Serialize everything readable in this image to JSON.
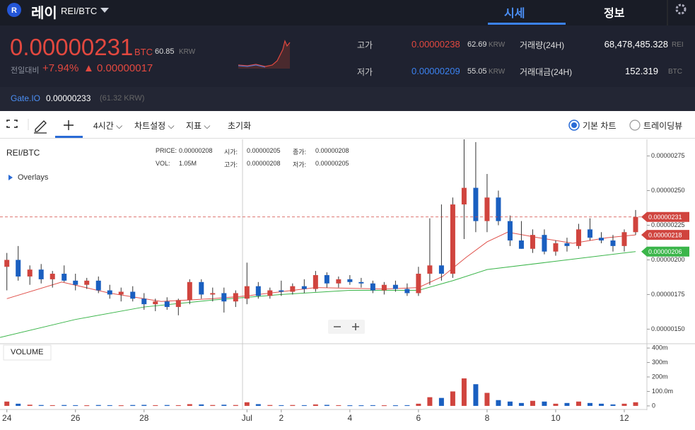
{
  "header": {
    "title": "레이",
    "pair": "REI/BTC",
    "tabs": [
      "시세",
      "정보"
    ]
  },
  "price": {
    "value": "0.00000231",
    "unit": "BTC",
    "krw": "60.85",
    "krw_unit": "KRW",
    "change_label": "전일대비",
    "change_pct": "+7.94%",
    "change": "▲ 0.00000017"
  },
  "stats": [
    {
      "label": "고가",
      "value": "0.00000238",
      "krw": "62.69",
      "unit": "KRW"
    },
    {
      "label": "저가",
      "value": "0.00000209",
      "krw": "55.05",
      "unit": "KRW"
    }
  ],
  "volume_stats": [
    {
      "label": "거래량(24H)",
      "value": "68,478,485.328",
      "unit": "REI"
    },
    {
      "label": "거래대금(24H)",
      "value": "152.319",
      "unit": "BTC"
    }
  ],
  "exchange": {
    "name": "Gate.IO",
    "price": "0.00000233",
    "krw": "(61.32 KRW)"
  },
  "toolbar": {
    "interval": "4시간",
    "settings": "차트설정",
    "indicators": "지표",
    "reset": "초기화",
    "modes": [
      "기본 차트",
      "트레이딩뷰"
    ]
  },
  "legend": {
    "symbol": "REI/BTC",
    "overlays": "Overlays",
    "volume": "VOLUME",
    "fields": [
      [
        "PRICE:",
        "0.00000208"
      ],
      [
        "시가:",
        "0.00000205"
      ],
      [
        "종가:",
        "0.00000208"
      ],
      [
        "VOL:",
        "1.05M"
      ],
      [
        "고가:",
        "0.00000208"
      ],
      [
        "저가:",
        "0.00000205"
      ]
    ]
  },
  "chart": {
    "type": "candlestick",
    "up_color": "#d0443e",
    "down_color": "#1a5fc0",
    "x": [
      0,
      0.33,
      0.67,
      1,
      1.33,
      1.67,
      2,
      2.33,
      2.67,
      3,
      3.33,
      3.67,
      4,
      4.33,
      4.67,
      5,
      5.33,
      5.67,
      6,
      6.33,
      6.67,
      7,
      7.33,
      7.67,
      8,
      8.33,
      8.67,
      9,
      9.33,
      9.67,
      10,
      10.33,
      10.67,
      11,
      11.33,
      11.67,
      12,
      12.33,
      12.67,
      13,
      13.33,
      13.67,
      14,
      14.33,
      14.67,
      15,
      15.33,
      15.67,
      16,
      16.33,
      16.67,
      17,
      17.33,
      17.67,
      18,
      18.33
    ],
    "open": [
      1.95e-06,
      2e-06,
      1.88e-06,
      1.93e-06,
      1.86e-06,
      1.9e-06,
      1.85e-06,
      1.82e-06,
      1.85e-06,
      1.78e-06,
      1.75e-06,
      1.77e-06,
      1.72e-06,
      1.68e-06,
      1.7e-06,
      1.66e-06,
      1.71e-06,
      1.84e-06,
      1.75e-06,
      1.76e-06,
      1.7e-06,
      1.72e-06,
      1.81e-06,
      1.74e-06,
      1.78e-06,
      1.77e-06,
      1.81e-06,
      1.79e-06,
      1.89e-06,
      1.83e-06,
      1.86e-06,
      1.84e-06,
      1.83e-06,
      1.78e-06,
      1.82e-06,
      1.79e-06,
      1.76e-06,
      1.9e-06,
      1.96e-06,
      1.9e-06,
      2.4e-06,
      2.52e-06,
      2.28e-06,
      2.45e-06,
      2.28e-06,
      2.14e-06,
      2.08e-06,
      2.18e-06,
      2.06e-06,
      2.12e-06,
      2.1e-06,
      2.22e-06,
      2.16e-06,
      2.14e-06,
      2.1e-06,
      2.2e-06
    ],
    "high": [
      2.05e-06,
      2.1e-06,
      1.96e-06,
      1.97e-06,
      1.92e-06,
      1.96e-06,
      1.9e-06,
      1.87e-06,
      1.88e-06,
      1.82e-06,
      1.8e-06,
      1.81e-06,
      1.76e-06,
      1.72e-06,
      1.73e-06,
      1.72e-06,
      1.86e-06,
      1.86e-06,
      1.8e-06,
      1.8e-06,
      1.78e-06,
      1.98e-06,
      1.84e-06,
      1.8e-06,
      1.85e-06,
      1.83e-06,
      1.86e-06,
      1.92e-06,
      1.91e-06,
      1.88e-06,
      1.89e-06,
      1.87e-06,
      1.85e-06,
      1.84e-06,
      1.85e-06,
      1.83e-06,
      1.95e-06,
      2.3e-06,
      2.4e-06,
      2.45e-06,
      2.87e-06,
      2.85e-06,
      2.62e-06,
      2.5e-06,
      2.32e-06,
      2.28e-06,
      2.22e-06,
      2.22e-06,
      2.14e-06,
      2.16e-06,
      2.26e-06,
      2.3e-06,
      2.2e-06,
      2.18e-06,
      2.22e-06,
      2.36e-06
    ],
    "low": [
      1.78e-06,
      1.85e-06,
      1.82e-06,
      1.83e-06,
      1.8e-06,
      1.84e-06,
      1.78e-06,
      1.79e-06,
      1.76e-06,
      1.72e-06,
      1.7e-06,
      1.7e-06,
      1.64e-06,
      1.63e-06,
      1.64e-06,
      1.6e-06,
      1.68e-06,
      1.72e-06,
      1.7e-06,
      1.62e-06,
      1.66e-06,
      1.68e-06,
      1.72e-06,
      1.72e-06,
      1.74e-06,
      1.75e-06,
      1.76e-06,
      1.77e-06,
      1.8e-06,
      1.8e-06,
      1.82e-06,
      1.8e-06,
      1.76e-06,
      1.75e-06,
      1.77e-06,
      1.74e-06,
      1.74e-06,
      1.82e-06,
      1.85e-06,
      1.87e-06,
      2.15e-06,
      2.2e-06,
      2.2e-06,
      2.25e-06,
      2.1e-06,
      2.08e-06,
      2.05e-06,
      2.04e-06,
      2.03e-06,
      2.06e-06,
      2.08e-06,
      2.14e-06,
      2.12e-06,
      2.06e-06,
      2.06e-06,
      2.18e-06
    ],
    "close": [
      2e-06,
      1.88e-06,
      1.93e-06,
      1.86e-06,
      1.9e-06,
      1.85e-06,
      1.82e-06,
      1.85e-06,
      1.78e-06,
      1.75e-06,
      1.77e-06,
      1.72e-06,
      1.68e-06,
      1.7e-06,
      1.66e-06,
      1.71e-06,
      1.84e-06,
      1.75e-06,
      1.76e-06,
      1.7e-06,
      1.76e-06,
      1.81e-06,
      1.74e-06,
      1.78e-06,
      1.77e-06,
      1.81e-06,
      1.79e-06,
      1.89e-06,
      1.83e-06,
      1.86e-06,
      1.84e-06,
      1.83e-06,
      1.78e-06,
      1.82e-06,
      1.79e-06,
      1.76e-06,
      1.9e-06,
      1.96e-06,
      1.9e-06,
      2.4e-06,
      2.52e-06,
      2.28e-06,
      2.45e-06,
      2.28e-06,
      2.14e-06,
      2.08e-06,
      2.18e-06,
      2.06e-06,
      2.12e-06,
      2.1e-06,
      2.22e-06,
      2.16e-06,
      2.14e-06,
      2.1e-06,
      2.2e-06,
      2.31e-06
    ],
    "volume": [
      30000000,
      15000000,
      8000000,
      6000000,
      5000000,
      6000000,
      5000000,
      4000000,
      6000000,
      5000000,
      4000000,
      6000000,
      7000000,
      5000000,
      6000000,
      5000000,
      12000000,
      10000000,
      6000000,
      8000000,
      6000000,
      25000000,
      12000000,
      6000000,
      5000000,
      6000000,
      5000000,
      10000000,
      7000000,
      5000000,
      4000000,
      4000000,
      5000000,
      4000000,
      4000000,
      5000000,
      15000000,
      60000000,
      55000000,
      100000000,
      190000000,
      150000000,
      90000000,
      40000000,
      30000000,
      20000000,
      35000000,
      30000000,
      15000000,
      20000000,
      30000000,
      20000000,
      15000000,
      10000000,
      15000000,
      25000000
    ],
    "lines": [
      {
        "color": "#e0504a",
        "x": [
          0,
          1.6,
          3,
          4.5,
          6,
          7,
          9,
          11,
          12,
          12.7,
          13.4,
          14,
          14.6,
          15.5,
          16.5,
          17.5,
          18.33
        ],
        "values": [
          1.72e-06,
          1.84e-06,
          1.76e-06,
          1.7e-06,
          1.72e-06,
          1.74e-06,
          1.8e-06,
          1.79e-06,
          1.8e-06,
          1.88e-06,
          2.02e-06,
          2.13e-06,
          2.2e-06,
          2.16e-06,
          2.12e-06,
          2.16e-06,
          2.18e-06
        ]
      },
      {
        "color": "#3bb54a",
        "x": [
          -0.2,
          2,
          4,
          6,
          8,
          10,
          12,
          13,
          14,
          16,
          18.33
        ],
        "values": [
          1.44e-06,
          1.57e-06,
          1.66e-06,
          1.71e-06,
          1.75e-06,
          1.78e-06,
          1.78e-06,
          1.85e-06,
          1.93e-06,
          1.99e-06,
          2.06e-06
        ]
      }
    ],
    "xlim": [
      -0.2,
      18.66
    ],
    "xticks": [
      {
        "value": 0,
        "label": "24"
      },
      {
        "value": 2,
        "label": "26"
      },
      {
        "value": 4,
        "label": "28"
      },
      {
        "value": 7,
        "label": "Jul"
      },
      {
        "value": 8,
        "label": "2"
      },
      {
        "value": 10,
        "label": "4"
      },
      {
        "value": 12,
        "label": "6"
      },
      {
        "value": 14,
        "label": "8"
      },
      {
        "value": 16,
        "label": "10"
      },
      {
        "value": 18,
        "label": "12"
      }
    ],
    "ylim": [
      1.4e-06,
      2.87e-06
    ],
    "yticks": [
      {
        "value": 1.5e-06,
        "label": "0.00000150"
      },
      {
        "value": 1.75e-06,
        "label": "0.00000175"
      },
      {
        "value": 2e-06,
        "label": "0.00000200"
      },
      {
        "value": 2.25e-06,
        "label": "0.00000225"
      },
      {
        "value": 2.5e-06,
        "label": "0.00000250"
      },
      {
        "value": 2.75e-06,
        "label": "0.00000275"
      }
    ],
    "volume_lim": [
      -20000000,
      425000000
    ],
    "volume_ticks": [
      0,
      {
        "value": 100000000,
        "label": "100.0m"
      },
      {
        "value": 200000000,
        "label": "200m"
      },
      {
        "value": 300000000,
        "label": "300m"
      },
      {
        "value": 400000000,
        "label": "400m"
      }
    ],
    "price_tags": [
      {
        "value": 2.31e-06,
        "label": "0.00000231",
        "color": "#d0443e",
        "dashed": true
      },
      {
        "value": 2.18e-06,
        "label": "0.00000218",
        "color": "#d0443e"
      },
      {
        "value": 2.06e-06,
        "label": "0.00000206",
        "color": "#3bb54a"
      }
    ]
  }
}
